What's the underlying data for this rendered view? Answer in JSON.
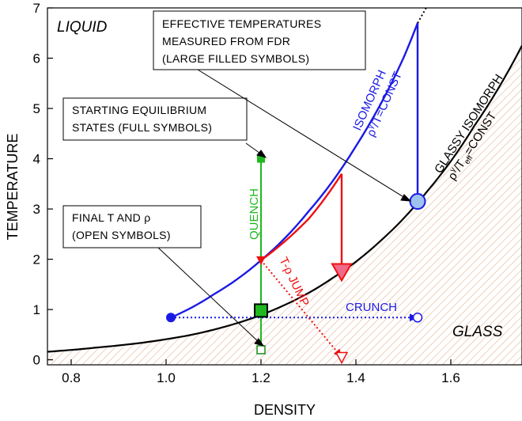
{
  "colors": {
    "isomorph": "#1a1ae6",
    "glassy": "#000000",
    "quench": "#1fb81f",
    "tjump": "#ee1111",
    "tjump_fill": "#f06a8a",
    "circle_fill": "#9ec1ee",
    "hatch": "#e6b79a"
  },
  "chart_data": {
    "type": "line",
    "xlabel": "DENSITY",
    "ylabel": "TEMPERATURE",
    "xlim": [
      0.75,
      1.75
    ],
    "ylim": [
      -0.1,
      7.0
    ],
    "x_ticks": [
      0.8,
      1.0,
      1.2,
      1.4,
      1.6
    ],
    "x_tick_labels": [
      "0.8",
      "1.0",
      "1.2",
      "1.4",
      "1.6"
    ],
    "y_ticks": [
      0,
      1,
      2,
      3,
      4,
      5,
      6,
      7
    ],
    "y_tick_labels": [
      "0",
      "1",
      "2",
      "3",
      "4",
      "5",
      "6",
      "7"
    ],
    "series": [
      {
        "x": [
          0.75,
          0.85,
          0.95,
          1.05,
          1.15,
          1.25,
          1.35,
          1.45,
          1.55,
          1.65,
          1.75
        ],
        "y": [
          0.16,
          0.24,
          0.34,
          0.49,
          0.73,
          1.09,
          1.62,
          2.35,
          3.35,
          4.66,
          6.25
        ]
      },
      {
        "x": [
          1.01,
          1.1,
          1.2,
          1.3,
          1.4,
          1.5,
          1.53
        ],
        "y": [
          0.84,
          1.3,
          1.98,
          2.95,
          4.25,
          6.0,
          6.7
        ]
      },
      {
        "x": [
          1.53,
          1.56
        ],
        "y": [
          6.7,
          7.2
        ]
      },
      {
        "x": [
          1.2,
          1.2
        ],
        "y": [
          4.0,
          0.2
        ]
      },
      {
        "x": [
          1.2,
          1.3,
          1.37
        ],
        "y": [
          1.98,
          2.8,
          3.7
        ]
      },
      {
        "x": [
          1.37,
          1.37
        ],
        "y": [
          3.7,
          1.75
        ]
      },
      {
        "x": [
          1.2,
          1.37
        ],
        "y": [
          1.98,
          0.05
        ]
      },
      {
        "x": [
          1.01,
          1.53
        ],
        "y": [
          0.84,
          0.84
        ]
      },
      {
        "x": [
          1.53,
          1.53
        ],
        "y": [
          6.7,
          3.15
        ]
      }
    ],
    "points": [
      {
        "x": 1.01,
        "y": 0.84,
        "marker": "circle-filled-small"
      },
      {
        "x": 1.53,
        "y": 0.84,
        "marker": "circle-open"
      },
      {
        "x": 1.53,
        "y": 3.15,
        "marker": "circle-filled-large"
      },
      {
        "x": 1.2,
        "y": 4.0,
        "marker": "square-filled-small"
      },
      {
        "x": 1.2,
        "y": 0.98,
        "marker": "square-filled-large"
      },
      {
        "x": 1.2,
        "y": 0.2,
        "marker": "square-open"
      },
      {
        "x": 1.2,
        "y": 1.98,
        "marker": "triangle-filled-small"
      },
      {
        "x": 1.37,
        "y": 1.75,
        "marker": "triangle-filled-large"
      },
      {
        "x": 1.37,
        "y": 0.05,
        "marker": "triangle-open"
      }
    ],
    "labels": {
      "liquid": "LIQUID",
      "glass": "GLASS",
      "quench": "QUENCH",
      "crunch": "CRUNCH",
      "tjump": "T-ρ JUMP",
      "isomorph_line1": "ISOMORPH",
      "isomorph_rho": "ρ",
      "isomorph_gamma": "γ",
      "isomorph_rest": "/T=CONST",
      "glassy_line1": "GLASSY ISOMORPH",
      "glassy_rho": "ρ",
      "glassy_gamma": "γ",
      "glassy_T": "/T",
      "glassy_eff": "eff",
      "glassy_rest": "=CONST"
    },
    "annotations": {
      "effective_line1": "EFFECTIVE TEMPERATURES",
      "effective_line2": "MEASURED FROM FDR",
      "effective_line3": "(LARGE FILLED SYMBOLS)",
      "starting_line1": "STARTING EQUILIBRIUM",
      "starting_line2": "STATES (FULL SYMBOLS)",
      "final_line1": "FINAL T AND ρ",
      "final_line2": "(OPEN SYMBOLS)"
    }
  }
}
